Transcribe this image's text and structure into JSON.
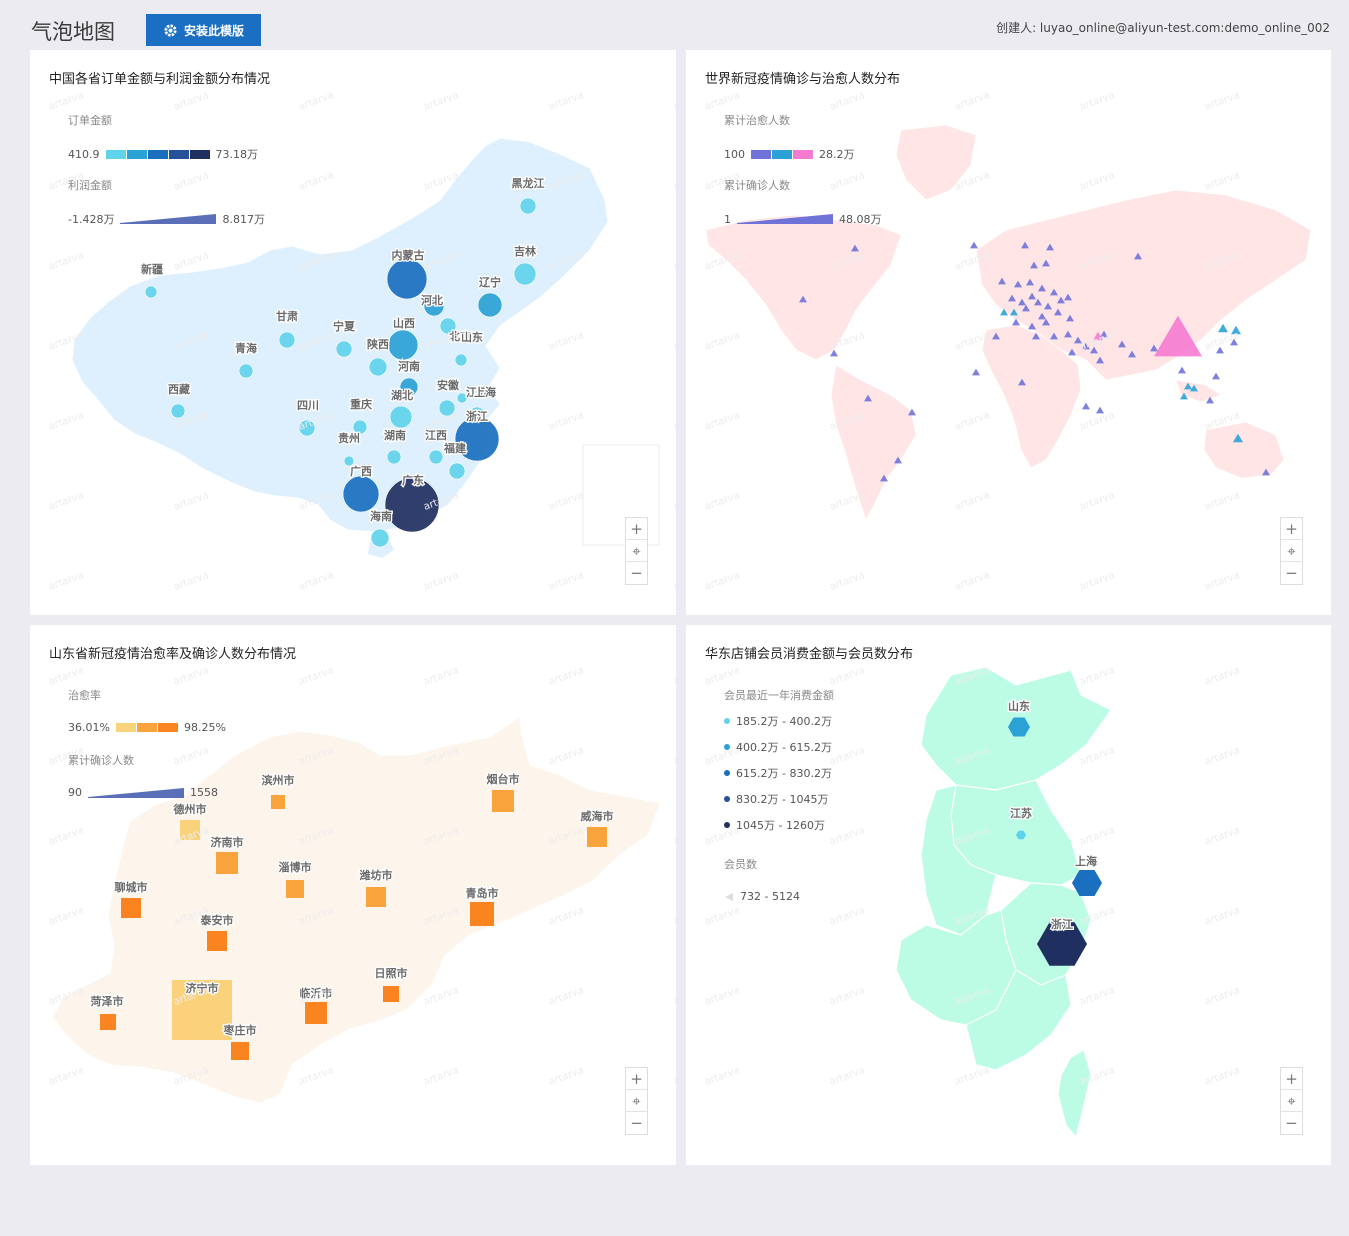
{
  "page": {
    "title": "气泡地图",
    "install_button": "安装此模版",
    "creator": "创建人: luyao_online@aliyun-test.com:demo_online_002"
  },
  "watermark": "artarva",
  "zoom_controls": {
    "zoom_in": "+",
    "locate": "⌖",
    "zoom_out": "−"
  },
  "panels": [
    {
      "title": "中国各省订单金额与利润金额分布情况",
      "legend": {
        "color_title": "订单金额",
        "color_min": "410.9",
        "color_max": "73.18万",
        "colors": [
          "#5fd3ea",
          "#2aa2d6",
          "#1a6fbf",
          "#24519a",
          "#1f2f5f"
        ],
        "size_title": "利润金额",
        "size_min": "-1.428万",
        "size_max": "8.817万"
      },
      "provinces": [
        "黑龙江",
        "吉林",
        "辽宁",
        "内蒙古",
        "河北",
        "新疆",
        "甘肃",
        "宁夏",
        "山西",
        "北京",
        "青海",
        "陕西",
        "山东",
        "河南",
        "江苏",
        "安徽",
        "上海",
        "西藏",
        "四川",
        "重庆",
        "湖北",
        "浙江",
        "贵州",
        "湖南",
        "江西",
        "广西",
        "福建",
        "广东",
        "海南"
      ]
    },
    {
      "title": "世界新冠疫情确诊与治愈人数分布",
      "legend": {
        "color_title": "累计治愈人数",
        "color_min": "100",
        "color_max": "28.2万",
        "colors": [
          "#6f73d8",
          "#2aa2d6",
          "#f57bd0"
        ],
        "size_title": "累计确诊人数",
        "size_min": "1",
        "size_max": "48.08万"
      }
    },
    {
      "title": "山东省新冠疫情治愈率及确诊人数分布情况",
      "legend": {
        "color_title": "治愈率",
        "color_min": "36.01%",
        "color_max": "98.25%",
        "colors": [
          "#fbd27c",
          "#f8a33b",
          "#fa8520"
        ],
        "size_title": "累计确诊人数",
        "size_min": "90",
        "size_max": "1558"
      },
      "cities": [
        "滨州市",
        "烟台市",
        "德州市",
        "威海市",
        "济南市",
        "淄博市",
        "潍坊市",
        "聊城市",
        "青岛市",
        "泰安市",
        "日照市",
        "菏泽市",
        "济宁市",
        "临沂市",
        "枣庄市"
      ]
    },
    {
      "title": "华东店铺会员消费金额与会员数分布",
      "legend": {
        "color_title": "会员最近一年消费金额",
        "ranges": [
          {
            "label": "185.2万 - 400.2万",
            "color": "#5fd3ea"
          },
          {
            "label": "400.2万 - 615.2万",
            "color": "#2aa2d6"
          },
          {
            "label": "615.2万 - 830.2万",
            "color": "#1a6fbf"
          },
          {
            "label": "830.2万 - 1045万",
            "color": "#24519a"
          },
          {
            "label": "1045万 - 1260万",
            "color": "#1f2f5f"
          }
        ],
        "size_title": "会员数",
        "size_range": "732 - 5124"
      },
      "regions": [
        "山东",
        "江苏",
        "上海",
        "浙江"
      ]
    }
  ]
}
